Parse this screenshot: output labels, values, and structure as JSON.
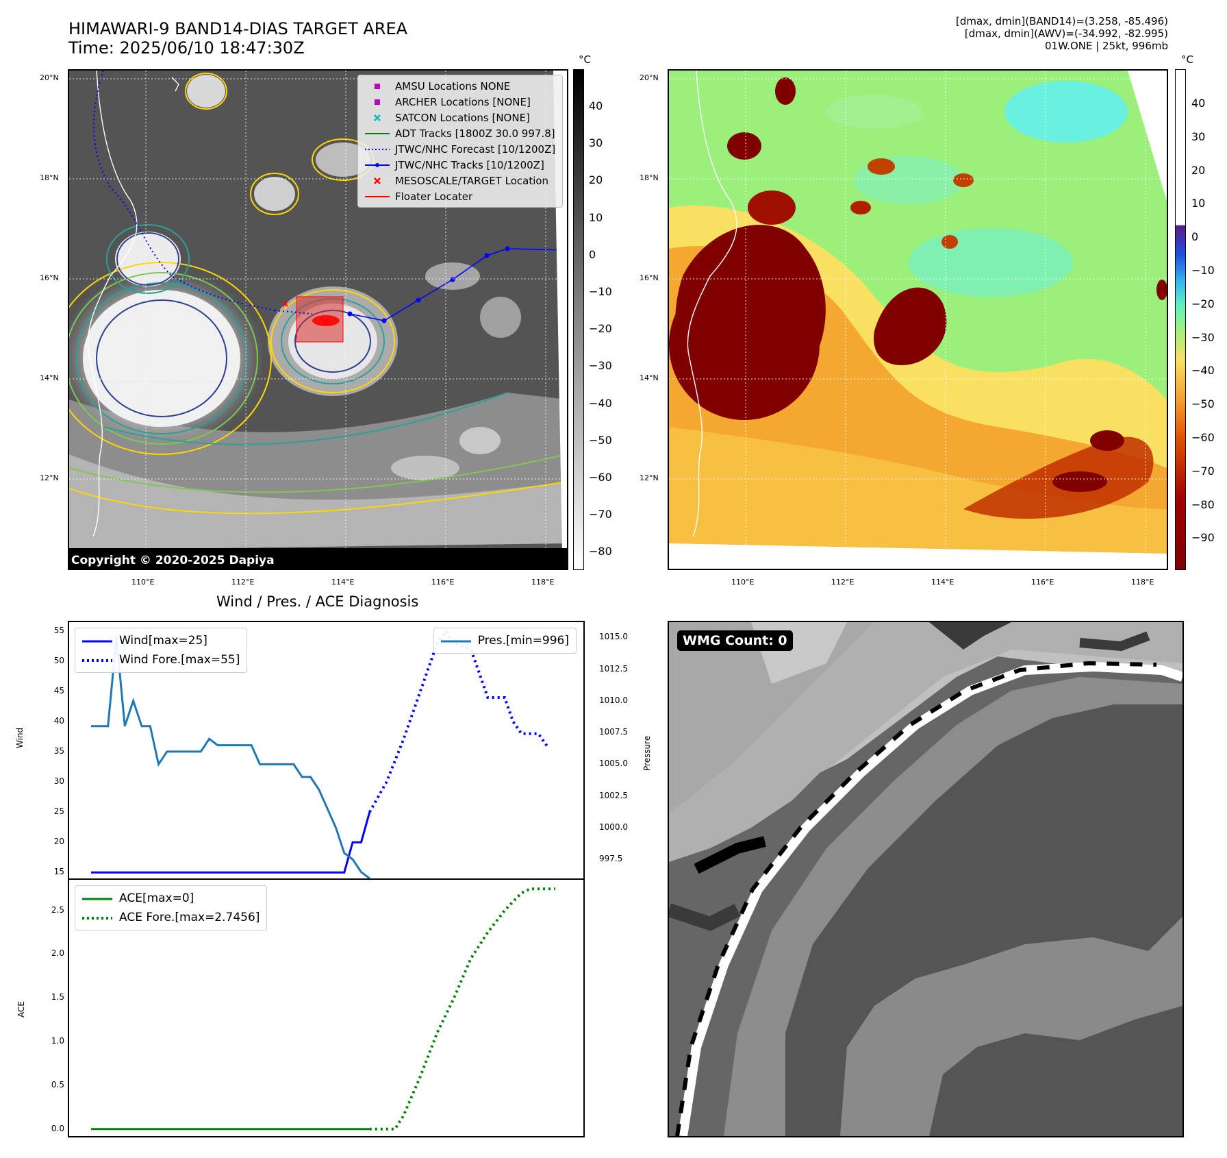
{
  "header": {
    "title_line1": "HIMAWARI-9 BAND14-DIAS TARGET AREA",
    "title_line2": "Time: 2025/06/10 18:47:30Z",
    "info_line1": "[dmax, dmin](BAND14)=(3.258, -85.496)",
    "info_line2": "[dmax, dmin](AWV)=(-34.992, -82.995)",
    "info_line3": "01W.ONE | 25kt, 996mb"
  },
  "map_axes": {
    "lat_ticks": [
      "20°N",
      "18°N",
      "16°N",
      "14°N",
      "12°N"
    ],
    "lon_ticks": [
      "110°E",
      "112°E",
      "114°E",
      "116°E",
      "118°E"
    ]
  },
  "ir_map": {
    "colorbar_unit": "°C",
    "colorbar_ticks": [
      "40",
      "30",
      "20",
      "10",
      "0",
      "−10",
      "−20",
      "−30",
      "−40",
      "−50",
      "−60",
      "−70",
      "−80"
    ],
    "copyright": "Copyright © 2020-2025 Dapiya",
    "legend": [
      {
        "label": "AMSU Locations NONE",
        "symbol": "square",
        "color": "#c000c0"
      },
      {
        "label": "ARCHER Locations [NONE]",
        "symbol": "square",
        "color": "#c000c0"
      },
      {
        "label": "SATCON Locations [NONE]",
        "symbol": "x",
        "color": "#00b8b8"
      },
      {
        "label": "ADT Tracks [1800Z 30.0 997.8]",
        "symbol": "line",
        "color": "#008000"
      },
      {
        "label": "JTWC/NHC Forecast [10/1200Z]",
        "symbol": "dotted",
        "color": "#0000ff"
      },
      {
        "label": "JTWC/NHC Tracks [10/1200Z]",
        "symbol": "line-dot",
        "color": "#0000ff"
      },
      {
        "label": "MESOSCALE/TARGET Location",
        "symbol": "x",
        "color": "#ff0000"
      },
      {
        "label": "Floater Locater",
        "symbol": "line",
        "color": "#ff0000"
      }
    ]
  },
  "wv_map": {
    "colorbar_unit": "°C",
    "colorbar_ticks": [
      "40",
      "30",
      "20",
      "10",
      "0",
      "−10",
      "−20",
      "−30",
      "−40",
      "−50",
      "−60",
      "−70",
      "−80",
      "−90"
    ]
  },
  "diagnosis": {
    "title": "Wind / Pres. / ACE Diagnosis",
    "wind_axis_label": "Wind",
    "pressure_axis_label": "Pressure",
    "ace_axis_label": "ACE",
    "legend_wind": "Wind[max=25]",
    "legend_wind_fore": "Wind Fore.[max=55]",
    "legend_pres": "Pres.[min=996]",
    "legend_ace": "ACE[max=0]",
    "legend_ace_fore": "ACE Fore.[max=2.7456]",
    "wind_color": "#0000ff",
    "pres_color": "#1f77b4",
    "ace_color": "#008000"
  },
  "wmg": {
    "label": "WMG Count: 0"
  },
  "chart_data": [
    {
      "type": "line",
      "title": "Wind / Pres. / ACE Diagnosis",
      "ylabel": "Wind",
      "ylim": [
        14,
        56.5
      ],
      "yticks": [
        15,
        20,
        25,
        30,
        35,
        40,
        45,
        50,
        55
      ],
      "x": [
        0,
        1,
        2,
        3,
        4,
        5,
        6,
        7,
        8,
        9,
        10,
        11,
        12,
        13,
        14,
        15,
        16,
        17,
        18,
        19,
        20,
        21,
        22,
        23,
        24,
        25,
        26,
        27,
        28,
        29,
        30,
        31,
        32,
        33,
        34,
        35,
        36,
        37,
        38,
        39,
        40,
        41,
        42,
        43,
        44,
        45,
        46,
        47,
        48,
        49,
        50,
        51,
        52,
        53,
        54,
        55
      ],
      "series": [
        {
          "name": "Wind[max=25]",
          "style": "solid",
          "color": "#0000ff",
          "points": [
            [
              0,
              15
            ],
            [
              1,
              15
            ],
            [
              2,
              15
            ],
            [
              3,
              15
            ],
            [
              4,
              15
            ],
            [
              5,
              15
            ],
            [
              6,
              15
            ],
            [
              7,
              15
            ],
            [
              8,
              15
            ],
            [
              9,
              15
            ],
            [
              10,
              15
            ],
            [
              11,
              15
            ],
            [
              12,
              15
            ],
            [
              13,
              15
            ],
            [
              14,
              15
            ],
            [
              15,
              15
            ],
            [
              16,
              15
            ],
            [
              17,
              15
            ],
            [
              18,
              15
            ],
            [
              19,
              15
            ],
            [
              20,
              15
            ],
            [
              21,
              15
            ],
            [
              22,
              15
            ],
            [
              23,
              15
            ],
            [
              24,
              15
            ],
            [
              25,
              15
            ],
            [
              26,
              15
            ],
            [
              27,
              15
            ],
            [
              28,
              15
            ],
            [
              29,
              15
            ],
            [
              30,
              15
            ],
            [
              31,
              20
            ],
            [
              32,
              20
            ],
            [
              33,
              25
            ]
          ]
        },
        {
          "name": "Wind Fore.[max=55]",
          "style": "dotted",
          "color": "#0000ff",
          "points": [
            [
              33,
              25
            ],
            [
              35,
              30
            ],
            [
              37,
              37
            ],
            [
              39,
              45
            ],
            [
              41,
              53
            ],
            [
              42,
              55
            ],
            [
              43,
              53
            ],
            [
              45,
              52
            ],
            [
              46,
              48
            ],
            [
              47,
              44
            ],
            [
              49,
              44
            ],
            [
              50,
              40
            ],
            [
              51,
              38
            ],
            [
              53,
              38
            ],
            [
              54,
              36
            ]
          ]
        },
        {
          "name": "Pres.[min=996]",
          "style": "solid",
          "color": "#1f77b4",
          "axis": "right",
          "ylim": [
            996,
            1016.2
          ],
          "yticks": [
            997.5,
            1000.0,
            1002.5,
            1005.0,
            1007.5,
            1010.0,
            1012.5,
            1015.0
          ],
          "points": [
            [
              0,
              1008
            ],
            [
              1,
              1008
            ],
            [
              2,
              1008
            ],
            [
              3,
              1015
            ],
            [
              4,
              1008
            ],
            [
              5,
              1010
            ],
            [
              6,
              1008
            ],
            [
              7,
              1008
            ],
            [
              8,
              1005
            ],
            [
              9,
              1006
            ],
            [
              10,
              1006
            ],
            [
              11,
              1006
            ],
            [
              12,
              1006
            ],
            [
              13,
              1006
            ],
            [
              14,
              1007
            ],
            [
              15,
              1006.5
            ],
            [
              16,
              1006.5
            ],
            [
              17,
              1006.5
            ],
            [
              18,
              1006.5
            ],
            [
              19,
              1006.5
            ],
            [
              20,
              1005
            ],
            [
              21,
              1005
            ],
            [
              22,
              1005
            ],
            [
              23,
              1005
            ],
            [
              24,
              1005
            ],
            [
              25,
              1004
            ],
            [
              26,
              1004
            ],
            [
              27,
              1003
            ],
            [
              28,
              1001.5
            ],
            [
              29,
              1000
            ],
            [
              30,
              998
            ],
            [
              31,
              997.5
            ],
            [
              32,
              996.5
            ],
            [
              33,
              996
            ]
          ]
        }
      ]
    },
    {
      "type": "line",
      "ylabel": "ACE",
      "ylim": [
        -0.08,
        2.85
      ],
      "yticks": [
        0.0,
        0.5,
        1.0,
        1.5,
        2.0,
        2.5
      ],
      "series": [
        {
          "name": "ACE[max=0]",
          "style": "solid",
          "color": "#008000",
          "points": [
            [
              0,
              0
            ],
            [
              33,
              0
            ]
          ]
        },
        {
          "name": "ACE Fore.[max=2.7456]",
          "style": "dotted",
          "color": "#008000",
          "points": [
            [
              33,
              0
            ],
            [
              36,
              0
            ],
            [
              37,
              0.15
            ],
            [
              39,
              0.6
            ],
            [
              41,
              1.1
            ],
            [
              43,
              1.5
            ],
            [
              45,
              1.95
            ],
            [
              47,
              2.25
            ],
            [
              49,
              2.5
            ],
            [
              51,
              2.7
            ],
            [
              52,
              2.7456
            ],
            [
              55,
              2.7456
            ]
          ]
        }
      ]
    }
  ]
}
